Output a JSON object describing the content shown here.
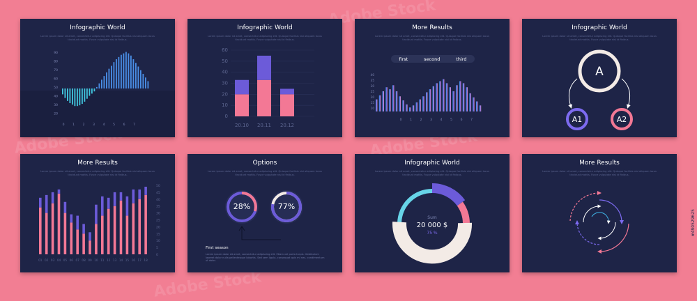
{
  "desc": "Lorem ipsum dolor sit amet, consectetur adipiscing elit. Quisque facilisis nisi aliquam lacus tincidunt mattis. Fusce vulputate nisi id finibus.",
  "watermark": "Adobe Stock",
  "image_id": "#490529625",
  "colors": {
    "bg": "#f27e93",
    "card": "#1e2447",
    "pink": "#f37895",
    "violet": "#6c5bd9",
    "blue": "#3fb5e8",
    "cyan": "#67d4e8",
    "cream": "#f3ebe6"
  },
  "cards": [
    {
      "title": "Infographic World"
    },
    {
      "title": "Infographic World"
    },
    {
      "title": "More Results",
      "tabs": [
        "first",
        "second",
        "third"
      ]
    },
    {
      "title": "Infographic World",
      "nodes": [
        "A",
        "A1",
        "A2"
      ]
    },
    {
      "title": "More Results"
    },
    {
      "title": "Options",
      "gauges": [
        "28%",
        "77%"
      ],
      "section_title": "First season",
      "section_text": "Lorem ipsum dolor sit amet, consectetur adipiscing elit. Etiam vel porta turpis. Vestibulum laoreet dolor nulla pellentesque lobortis. Sed sem ligula, consequat quis mi nec, condimentum ut dolor."
    },
    {
      "title": "Infographic World",
      "sum_label": "Sum",
      "sum_value": "20 000 $",
      "sum_pct": "75 %"
    },
    {
      "title": "More Results"
    }
  ],
  "chart_data": [
    {
      "type": "bar",
      "panel": "top-1",
      "y_ticks": [
        "90",
        "80",
        "70",
        "60",
        "50",
        "40",
        "30",
        "20"
      ],
      "x_ticks": [
        "0",
        "1",
        "2",
        "3",
        "4",
        "5",
        "6",
        "7"
      ],
      "values": [
        -8,
        -13,
        -17,
        -20,
        -22,
        -24,
        -24,
        -23,
        -21,
        -18,
        -14,
        -10,
        -7,
        -4,
        2,
        7,
        12,
        17,
        22,
        27,
        31,
        36,
        40,
        43,
        46,
        48,
        50,
        48,
        45,
        40,
        35,
        30,
        25,
        20,
        15,
        10
      ]
    },
    {
      "type": "bar",
      "stacked": true,
      "panel": "top-2",
      "categories": [
        "20.10",
        "20.11",
        "20.12"
      ],
      "y_ticks": [
        "60",
        "50",
        "40",
        "30",
        "20",
        "10",
        "0"
      ],
      "ylim": [
        0,
        60
      ],
      "series": [
        {
          "values": [
            20,
            33,
            20
          ]
        },
        {
          "values": [
            13,
            22,
            5
          ]
        }
      ]
    },
    {
      "type": "bar",
      "panel": "top-3",
      "y_ticks": [
        "40",
        "35",
        "30",
        "25",
        "20",
        "15",
        "10"
      ],
      "x_ticks": [
        "0",
        "1",
        "2",
        "3",
        "4",
        "5",
        "6",
        "7"
      ],
      "values": [
        12,
        16,
        20,
        24,
        22,
        26,
        20,
        15,
        11,
        7,
        4,
        6,
        9,
        12,
        15,
        19,
        22,
        25,
        28,
        30,
        32,
        28,
        24,
        20,
        26,
        30,
        28,
        24,
        18,
        14,
        10,
        6
      ]
    },
    {
      "type": "bar",
      "stacked": true,
      "panel": "bottom-1",
      "y_ticks": [
        "50",
        "45",
        "40",
        "35",
        "30",
        "25",
        "20",
        "15",
        "10",
        "5",
        "0"
      ],
      "x_ticks": [
        "01",
        "02",
        "03",
        "04",
        "05",
        "06",
        "07",
        "08",
        "09",
        "10",
        "11",
        "12",
        "13",
        "14",
        "15",
        "16",
        "17",
        "18"
      ],
      "ylim": [
        0,
        50
      ],
      "series": [
        {
          "values": [
            34,
            30,
            37,
            44,
            30,
            23,
            18,
            15,
            10,
            22,
            28,
            33,
            35,
            39,
            28,
            37,
            40,
            43
          ]
        },
        {
          "values": [
            7,
            13,
            8,
            3,
            8,
            6,
            10,
            7,
            6,
            14,
            14,
            8,
            10,
            6,
            14,
            10,
            7,
            6
          ]
        }
      ]
    },
    {
      "type": "pie",
      "panel": "bottom-3",
      "values": [
        75,
        25
      ],
      "labels": [
        "75 %",
        ""
      ]
    }
  ]
}
